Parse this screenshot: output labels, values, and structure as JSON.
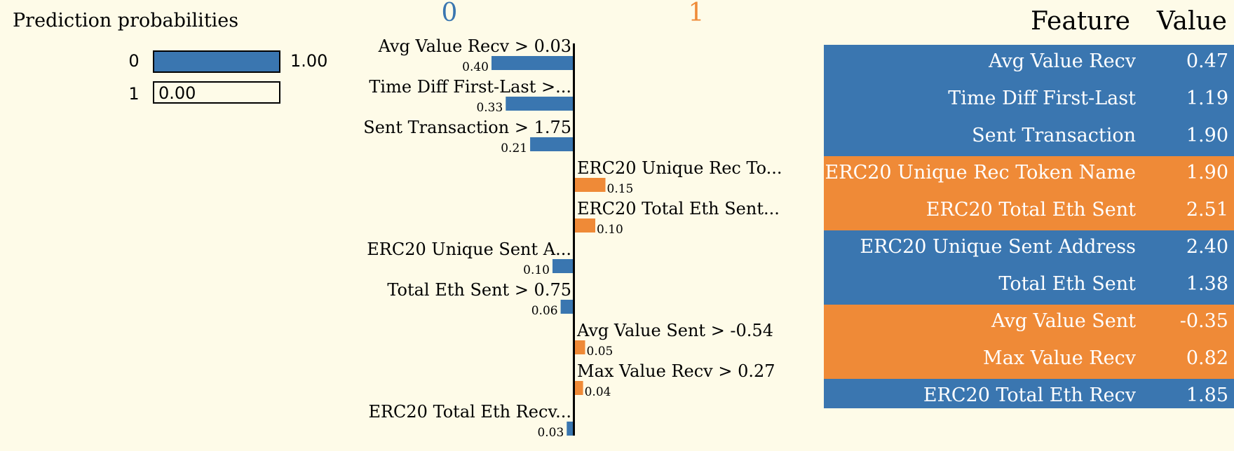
{
  "colors": {
    "class0": "#3a76b0",
    "class1": "#ef8a37",
    "background": "#fefbe8"
  },
  "prediction": {
    "title": "Prediction probabilities",
    "rows": [
      {
        "class": "0",
        "prob": 1.0,
        "label": "1.00"
      },
      {
        "class": "1",
        "prob": 0.0,
        "label": "0.00"
      }
    ]
  },
  "chart_data": {
    "type": "bar",
    "orientation": "horizontal",
    "class_labels": [
      "0",
      "1"
    ],
    "bars": [
      {
        "label": "Avg Value Recv > 0.03",
        "value": 0.4,
        "value_label": "0.40",
        "class": "0"
      },
      {
        "label": "Time Diff First-Last >...",
        "value": 0.33,
        "value_label": "0.33",
        "class": "0"
      },
      {
        "label": "Sent Transaction > 1.75",
        "value": 0.21,
        "value_label": "0.21",
        "class": "0"
      },
      {
        "label": "ERC20 Unique Rec To...",
        "value": 0.15,
        "value_label": "0.15",
        "class": "1"
      },
      {
        "label": "ERC20 Total Eth Sent...",
        "value": 0.1,
        "value_label": "0.10",
        "class": "1"
      },
      {
        "label": "ERC20 Unique Sent A...",
        "value": 0.1,
        "value_label": "0.10",
        "class": "0"
      },
      {
        "label": "Total Eth Sent > 0.75",
        "value": 0.06,
        "value_label": "0.06",
        "class": "0"
      },
      {
        "label": "Avg Value Sent > -0.54",
        "value": 0.05,
        "value_label": "0.05",
        "class": "1"
      },
      {
        "label": "Max Value Recv > 0.27",
        "value": 0.04,
        "value_label": "0.04",
        "class": "1"
      },
      {
        "label": "ERC20 Total Eth Recv...",
        "value": 0.03,
        "value_label": "0.03",
        "class": "0"
      }
    ]
  },
  "table": {
    "headers": {
      "feature": "Feature",
      "value": "Value"
    },
    "rows": [
      {
        "feature": "Avg Value Recv",
        "value": "0.47",
        "class": "0"
      },
      {
        "feature": "Time Diff First-Last",
        "value": "1.19",
        "class": "0"
      },
      {
        "feature": "Sent Transaction",
        "value": "1.90",
        "class": "0"
      },
      {
        "feature": "ERC20 Unique Rec Token Name",
        "value": "1.90",
        "class": "1"
      },
      {
        "feature": "ERC20 Total Eth Sent",
        "value": "2.51",
        "class": "1"
      },
      {
        "feature": "ERC20 Unique Sent Address",
        "value": "2.40",
        "class": "0"
      },
      {
        "feature": "Total Eth Sent",
        "value": "1.38",
        "class": "0"
      },
      {
        "feature": "Avg Value Sent",
        "value": "-0.35",
        "class": "1"
      },
      {
        "feature": "Max Value Recv",
        "value": "0.82",
        "class": "1"
      },
      {
        "feature": "ERC20 Total Eth Recv",
        "value": "1.85",
        "class": "0"
      }
    ]
  }
}
